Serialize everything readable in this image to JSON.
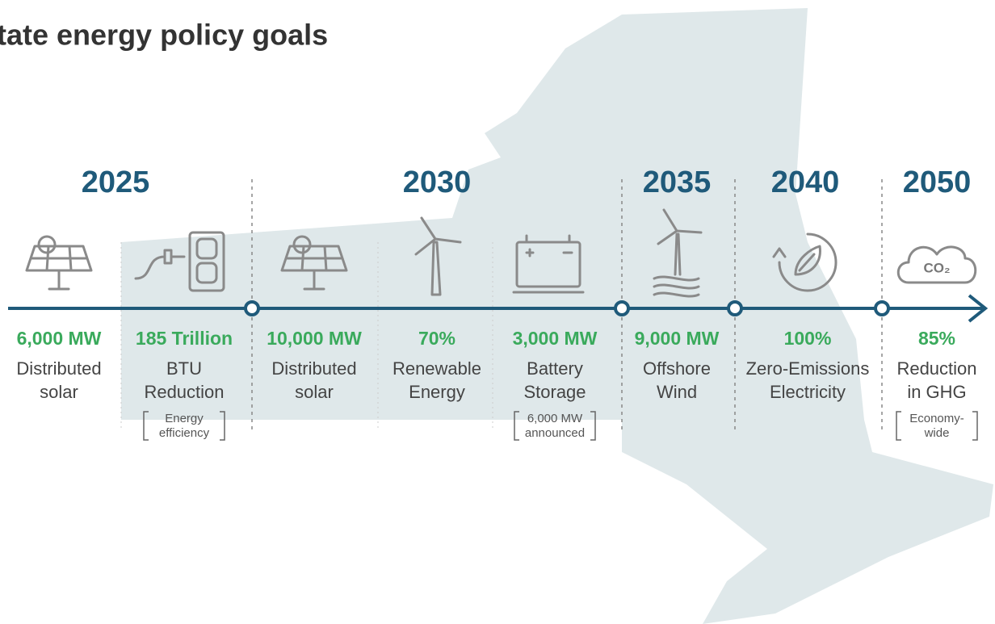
{
  "header": {
    "title": "tate energy policy goals"
  },
  "years": [
    "2025",
    "2030",
    "2035",
    "2040",
    "2050"
  ],
  "items": [
    {
      "value": "6,000 MW",
      "label": [
        "Distributed",
        "solar"
      ]
    },
    {
      "value": "185 Trillion",
      "label": [
        "BTU",
        "Reduction"
      ],
      "note": [
        "Energy",
        "efficiency"
      ]
    },
    {
      "value": "10,000 MW",
      "label": [
        "Distributed",
        "solar"
      ]
    },
    {
      "value": "70%",
      "label": [
        "Renewable",
        "Energy"
      ]
    },
    {
      "value": "3,000 MW",
      "label": [
        "Battery",
        "Storage"
      ],
      "note": [
        "6,000 MW",
        "announced"
      ]
    },
    {
      "value": "9,000 MW",
      "label": [
        "Offshore",
        "Wind"
      ]
    },
    {
      "value": "100%",
      "label": [
        "Zero-Emissions",
        "Electricity"
      ]
    },
    {
      "value": "85%",
      "label": [
        "Reduction",
        "in GHG"
      ],
      "note": [
        "Economy-",
        "wide"
      ]
    }
  ],
  "icon_text": {
    "co2": "CO₂"
  }
}
